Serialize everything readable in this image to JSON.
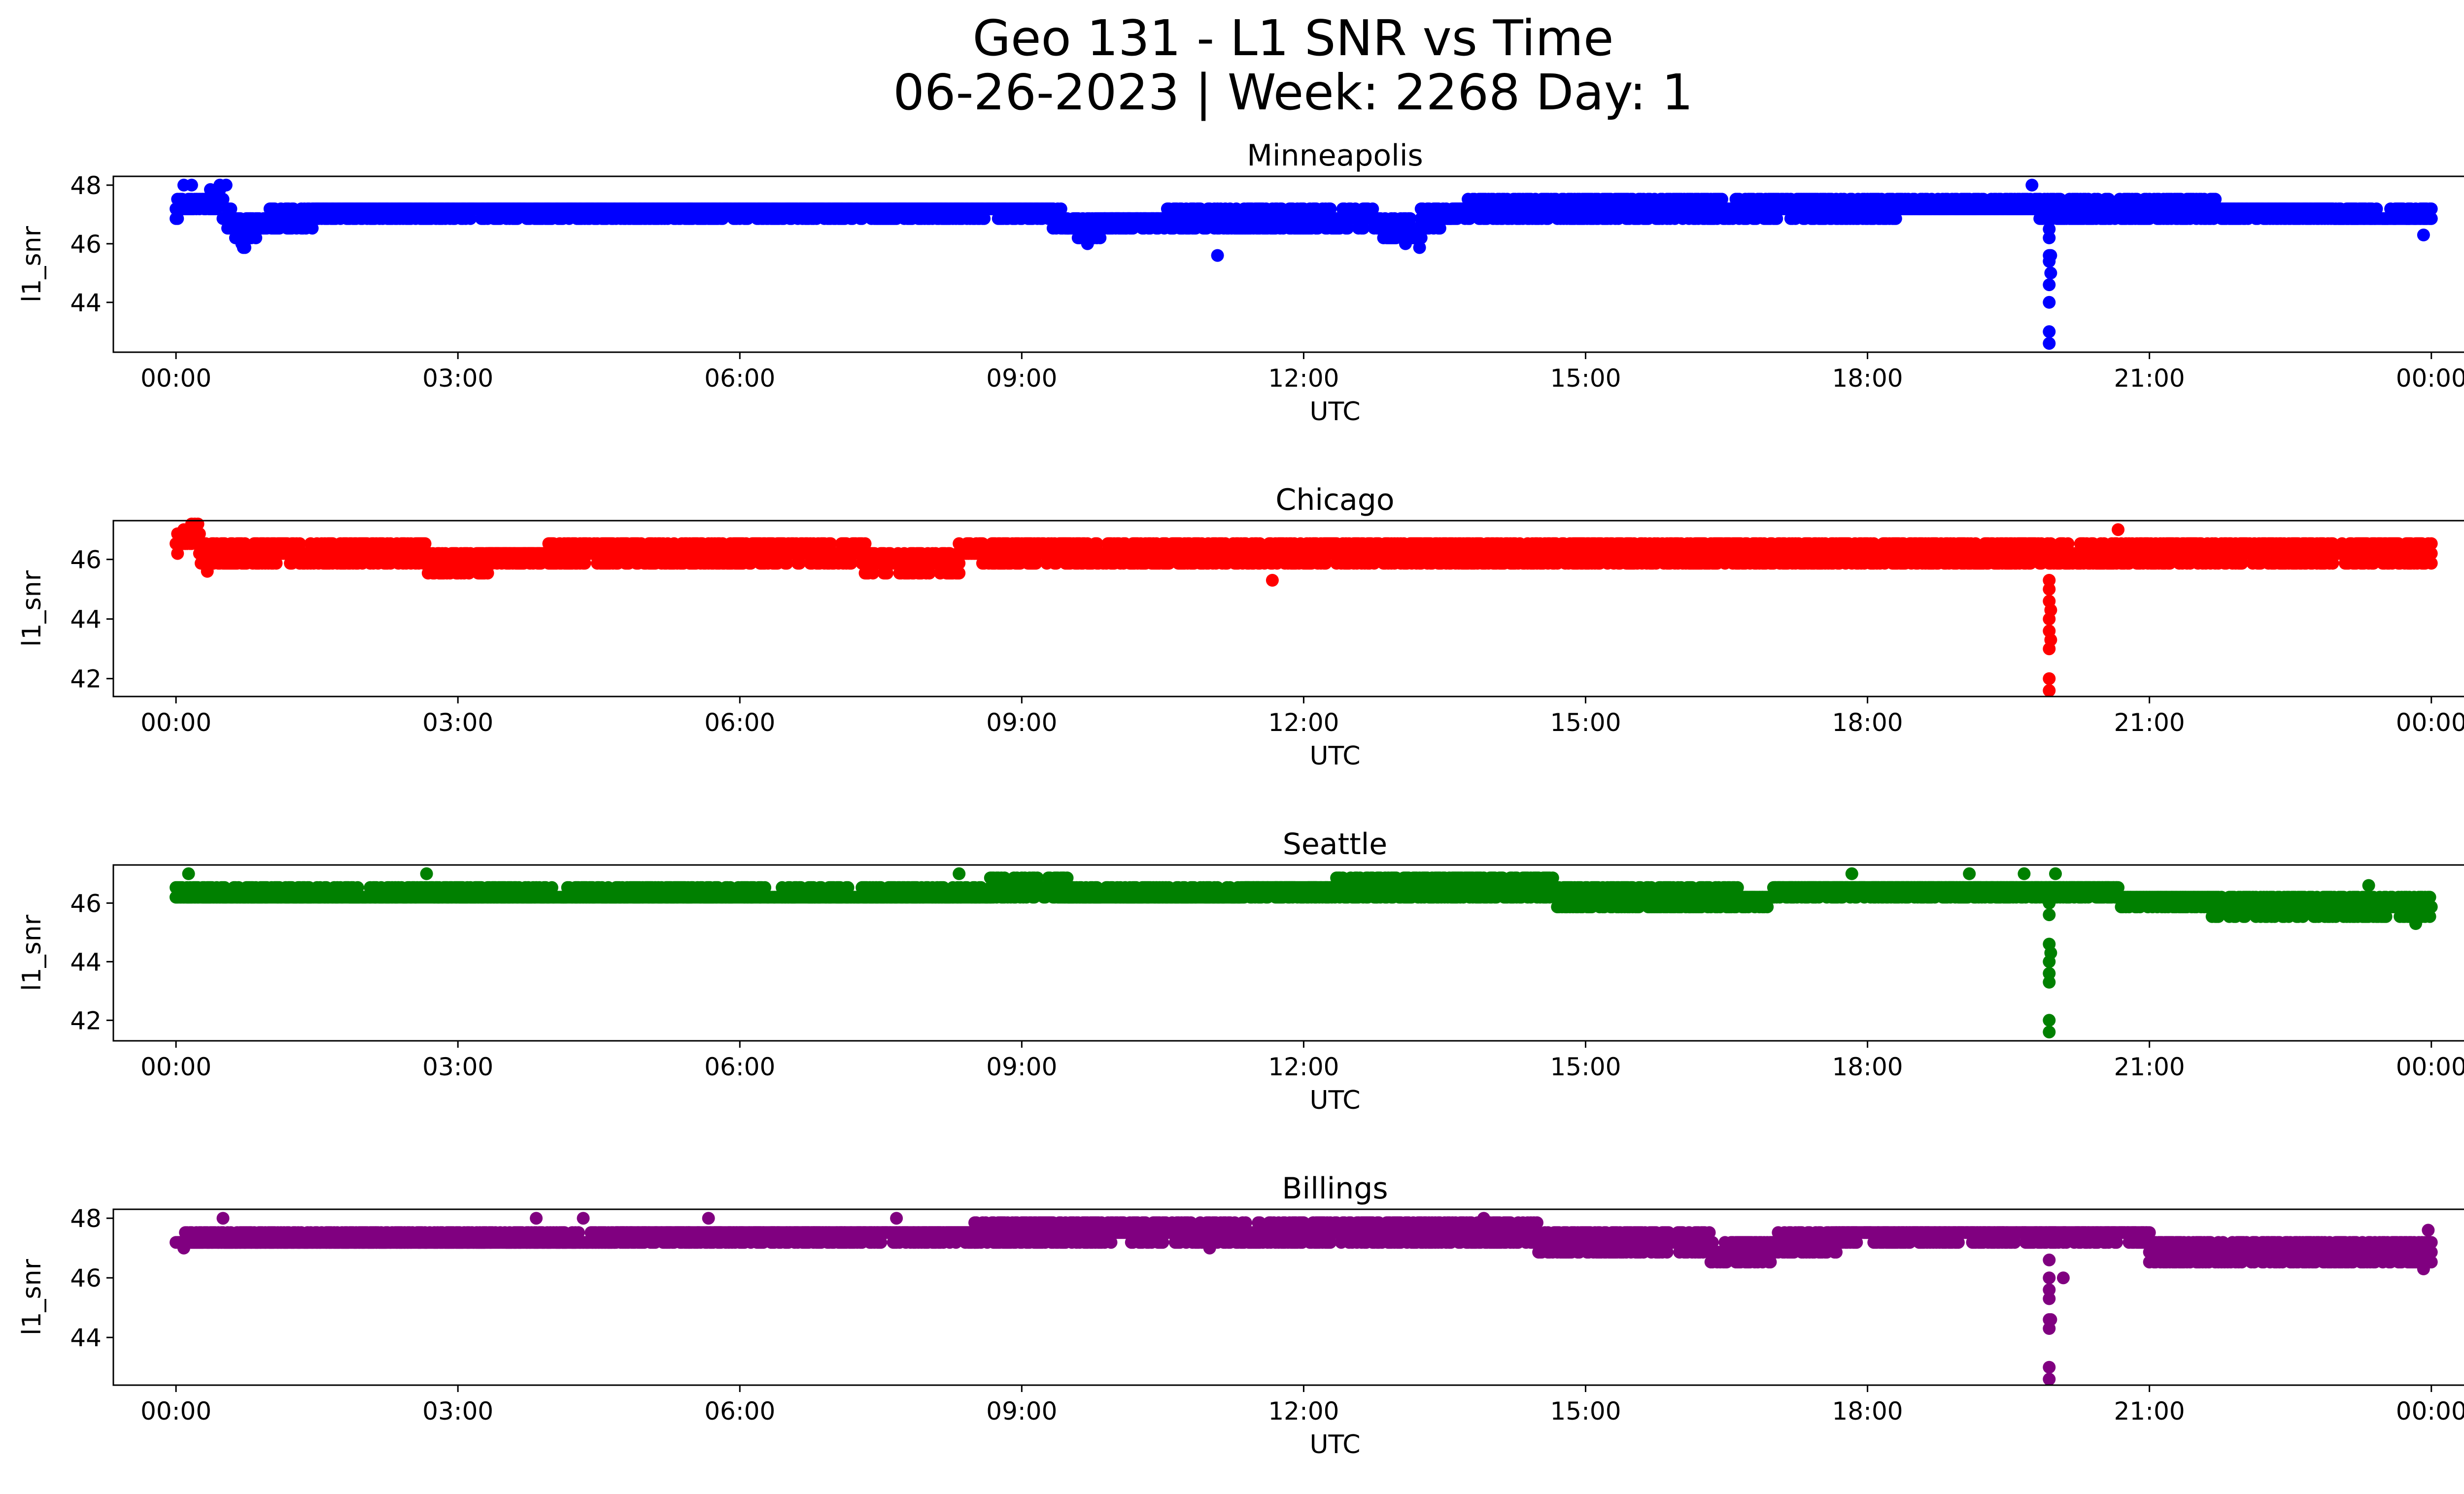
{
  "figure": {
    "title_line1": "Geo 131 - L1 SNR vs Time",
    "title_line2": "06-26-2023 | Week: 2268 Day: 1"
  },
  "chart_data": [
    {
      "type": "scatter",
      "title": "Minneapolis",
      "xlabel": "UTC",
      "ylabel": "l1_snr",
      "color": "#0000ff",
      "xlim": [
        "23:20",
        "24:00+01:20"
      ],
      "xticks": [
        "00:00",
        "03:00",
        "06:00",
        "09:00",
        "12:00",
        "15:00",
        "18:00",
        "21:00",
        "00:00"
      ],
      "ylim": [
        42.3,
        48.3
      ],
      "yticks": [
        44,
        46,
        48
      ],
      "series": [
        {
          "segments": [
            {
              "x": [
                "00:00",
                "00:30"
              ],
              "y": [
                47.2,
                47.6
              ],
              "spread": 0.4
            },
            {
              "x": [
                "00:30",
                "00:45"
              ],
              "y": [
                47.0,
                46.2
              ],
              "spread": 0.6
            },
            {
              "x": [
                "00:45",
                "01:30"
              ],
              "y": [
                46.6,
                47.0
              ],
              "spread": 0.6
            },
            {
              "x": [
                "01:30",
                "09:20"
              ],
              "y": [
                47.1,
                47.1
              ],
              "spread": 0.5
            },
            {
              "x": [
                "09:20",
                "09:50"
              ],
              "y": [
                46.8,
                46.4
              ],
              "spread": 0.6
            },
            {
              "x": [
                "09:50",
                "12:40"
              ],
              "y": [
                46.7,
                46.8
              ],
              "spread": 0.6
            },
            {
              "x": [
                "12:40",
                "13:15"
              ],
              "y": [
                46.8,
                46.3
              ],
              "spread": 0.6
            },
            {
              "x": [
                "13:15",
                "14:00"
              ],
              "y": [
                46.8,
                47.3
              ],
              "spread": 0.5
            },
            {
              "x": [
                "14:00",
                "19:50"
              ],
              "y": [
                47.2,
                47.3
              ],
              "spread": 0.5
            },
            {
              "x": [
                "19:50",
                "24:00"
              ],
              "y": [
                47.1,
                47.0
              ],
              "spread": 0.6
            }
          ],
          "outliers": [
            {
              "x": "00:05",
              "y": 48.0
            },
            {
              "x": "00:10",
              "y": 48.0
            },
            {
              "x": "00:28",
              "y": 48.0
            },
            {
              "x": "00:32",
              "y": 48.0
            },
            {
              "x": "00:42",
              "y": 46.0
            },
            {
              "x": "09:42",
              "y": 46.0
            },
            {
              "x": "11:05",
              "y": 45.6
            },
            {
              "x": "13:05",
              "y": 46.0
            },
            {
              "x": "19:45",
              "y": 48.0
            },
            {
              "x": "23:55",
              "y": 46.3
            },
            {
              "x": "19:56",
              "y": 46.5
            },
            {
              "x": "19:56",
              "y": 46.2
            },
            {
              "x": "19:56",
              "y": 45.6
            },
            {
              "x": "19:56",
              "y": 45.4
            },
            {
              "x": "19:56",
              "y": 44.6
            },
            {
              "x": "19:56",
              "y": 44.0
            },
            {
              "x": "19:56",
              "y": 43.0
            },
            {
              "x": "19:56",
              "y": 42.6
            },
            {
              "x": "19:57",
              "y": 45.6
            },
            {
              "x": "19:57",
              "y": 45.0
            }
          ]
        }
      ]
    },
    {
      "type": "scatter",
      "title": "Chicago",
      "xlabel": "UTC",
      "ylabel": "l1_snr",
      "color": "#ff0000",
      "xlim": [
        "23:20",
        "24:00+01:20"
      ],
      "xticks": [
        "00:00",
        "03:00",
        "06:00",
        "09:00",
        "12:00",
        "15:00",
        "18:00",
        "21:00",
        "00:00"
      ],
      "ylim": [
        41.4,
        47.3
      ],
      "yticks": [
        42,
        44,
        46
      ],
      "series": [
        {
          "segments": [
            {
              "x": [
                "00:00",
                "00:15"
              ],
              "y": [
                46.6,
                46.8
              ],
              "spread": 0.6
            },
            {
              "x": [
                "00:15",
                "02:40"
              ],
              "y": [
                46.2,
                46.2
              ],
              "spread": 0.5
            },
            {
              "x": [
                "02:40",
                "03:20"
              ],
              "y": [
                45.9,
                45.9
              ],
              "spread": 0.6
            },
            {
              "x": [
                "03:20",
                "07:20"
              ],
              "y": [
                46.1,
                46.2
              ],
              "spread": 0.5
            },
            {
              "x": [
                "07:20",
                "08:20"
              ],
              "y": [
                45.9,
                45.9
              ],
              "spread": 0.6
            },
            {
              "x": [
                "08:20",
                "10:00"
              ],
              "y": [
                46.3,
                46.2
              ],
              "spread": 0.5
            },
            {
              "x": [
                "10:00",
                "19:50"
              ],
              "y": [
                46.1,
                46.2
              ],
              "spread": 0.6
            },
            {
              "x": [
                "19:50",
                "24:00"
              ],
              "y": [
                46.2,
                46.2
              ],
              "spread": 0.6
            }
          ],
          "outliers": [
            {
              "x": "00:05",
              "y": 47.0
            },
            {
              "x": "00:12",
              "y": 47.0
            },
            {
              "x": "00:20",
              "y": 45.6
            },
            {
              "x": "11:40",
              "y": 45.3
            },
            {
              "x": "20:40",
              "y": 47.0
            },
            {
              "x": "19:56",
              "y": 45.3
            },
            {
              "x": "19:56",
              "y": 45.0
            },
            {
              "x": "19:56",
              "y": 44.6
            },
            {
              "x": "19:56",
              "y": 44.0
            },
            {
              "x": "19:56",
              "y": 43.6
            },
            {
              "x": "19:56",
              "y": 43.0
            },
            {
              "x": "19:56",
              "y": 42.0
            },
            {
              "x": "19:56",
              "y": 41.6
            },
            {
              "x": "19:57",
              "y": 44.3
            },
            {
              "x": "19:57",
              "y": 43.3
            }
          ]
        }
      ]
    },
    {
      "type": "scatter",
      "title": "Seattle",
      "xlabel": "UTC",
      "ylabel": "l1_snr",
      "color": "#008000",
      "xlim": [
        "23:20",
        "24:00+01:20"
      ],
      "xticks": [
        "00:00",
        "03:00",
        "06:00",
        "09:00",
        "12:00",
        "15:00",
        "18:00",
        "21:00",
        "00:00"
      ],
      "ylim": [
        41.3,
        47.3
      ],
      "yticks": [
        42,
        44,
        46
      ],
      "series": [
        {
          "segments": [
            {
              "x": [
                "00:00",
                "08:40"
              ],
              "y": [
                46.3,
                46.3
              ],
              "spread": 0.5
            },
            {
              "x": [
                "08:40",
                "09:30"
              ],
              "y": [
                46.5,
                46.5
              ],
              "spread": 0.6
            },
            {
              "x": [
                "09:30",
                "12:20"
              ],
              "y": [
                46.3,
                46.4
              ],
              "spread": 0.5
            },
            {
              "x": [
                "12:20",
                "14:40"
              ],
              "y": [
                46.6,
                46.5
              ],
              "spread": 0.6
            },
            {
              "x": [
                "14:40",
                "17:00"
              ],
              "y": [
                46.2,
                46.1
              ],
              "spread": 0.5
            },
            {
              "x": [
                "17:00",
                "20:40"
              ],
              "y": [
                46.4,
                46.4
              ],
              "spread": 0.5
            },
            {
              "x": [
                "20:40",
                "21:40"
              ],
              "y": [
                46.1,
                46.1
              ],
              "spread": 0.4
            },
            {
              "x": [
                "21:40",
                "24:00"
              ],
              "y": [
                45.9,
                45.9
              ],
              "spread": 0.6
            }
          ],
          "outliers": [
            {
              "x": "00:08",
              "y": 47.0
            },
            {
              "x": "02:40",
              "y": 47.0
            },
            {
              "x": "08:20",
              "y": 47.0
            },
            {
              "x": "17:50",
              "y": 47.0
            },
            {
              "x": "19:05",
              "y": 47.0
            },
            {
              "x": "19:40",
              "y": 47.0
            },
            {
              "x": "20:00",
              "y": 47.0
            },
            {
              "x": "23:50",
              "y": 45.3
            },
            {
              "x": "23:20",
              "y": 46.6
            },
            {
              "x": "19:56",
              "y": 46.0
            },
            {
              "x": "19:56",
              "y": 45.6
            },
            {
              "x": "19:56",
              "y": 44.6
            },
            {
              "x": "19:56",
              "y": 44.0
            },
            {
              "x": "19:56",
              "y": 43.6
            },
            {
              "x": "19:56",
              "y": 43.3
            },
            {
              "x": "19:56",
              "y": 42.0
            },
            {
              "x": "19:56",
              "y": 41.6
            },
            {
              "x": "19:57",
              "y": 44.3
            }
          ]
        }
      ]
    },
    {
      "type": "scatter",
      "title": "Billings",
      "xlabel": "UTC",
      "ylabel": "l1_snr",
      "color": "#800080",
      "xlim": [
        "23:20",
        "24:00+01:20"
      ],
      "xticks": [
        "00:00",
        "03:00",
        "06:00",
        "09:00",
        "12:00",
        "15:00",
        "18:00",
        "21:00",
        "00:00"
      ],
      "ylim": [
        42.4,
        48.3
      ],
      "yticks": [
        44,
        46,
        48
      ],
      "series": [
        {
          "segments": [
            {
              "x": [
                "00:00",
                "08:30"
              ],
              "y": [
                47.3,
                47.4
              ],
              "spread": 0.5
            },
            {
              "x": [
                "08:30",
                "14:30"
              ],
              "y": [
                47.6,
                47.6
              ],
              "spread": 0.6
            },
            {
              "x": [
                "14:30",
                "16:20"
              ],
              "y": [
                47.2,
                47.2
              ],
              "spread": 0.5
            },
            {
              "x": [
                "16:20",
                "17:00"
              ],
              "y": [
                46.9,
                46.9
              ],
              "spread": 0.6
            },
            {
              "x": [
                "17:00",
                "17:40"
              ],
              "y": [
                47.1,
                47.2
              ],
              "spread": 0.5
            },
            {
              "x": [
                "17:40",
                "21:00"
              ],
              "y": [
                47.4,
                47.4
              ],
              "spread": 0.5
            },
            {
              "x": [
                "21:00",
                "24:00"
              ],
              "y": [
                46.9,
                46.9
              ],
              "spread": 0.6
            }
          ],
          "outliers": [
            {
              "x": "00:05",
              "y": 47.0
            },
            {
              "x": "00:30",
              "y": 48.0
            },
            {
              "x": "03:50",
              "y": 48.0
            },
            {
              "x": "04:20",
              "y": 48.0
            },
            {
              "x": "05:40",
              "y": 48.0
            },
            {
              "x": "07:40",
              "y": 48.0
            },
            {
              "x": "11:00",
              "y": 47.0
            },
            {
              "x": "13:55",
              "y": 48.0
            },
            {
              "x": "20:05",
              "y": 46.0
            },
            {
              "x": "23:55",
              "y": 46.3
            },
            {
              "x": "23:58",
              "y": 47.6
            },
            {
              "x": "19:56",
              "y": 46.6
            },
            {
              "x": "19:56",
              "y": 46.0
            },
            {
              "x": "19:56",
              "y": 45.6
            },
            {
              "x": "19:56",
              "y": 45.3
            },
            {
              "x": "19:56",
              "y": 44.6
            },
            {
              "x": "19:56",
              "y": 44.3
            },
            {
              "x": "19:56",
              "y": 43.0
            },
            {
              "x": "19:56",
              "y": 42.6
            },
            {
              "x": "19:57",
              "y": 44.6
            }
          ]
        }
      ]
    }
  ]
}
